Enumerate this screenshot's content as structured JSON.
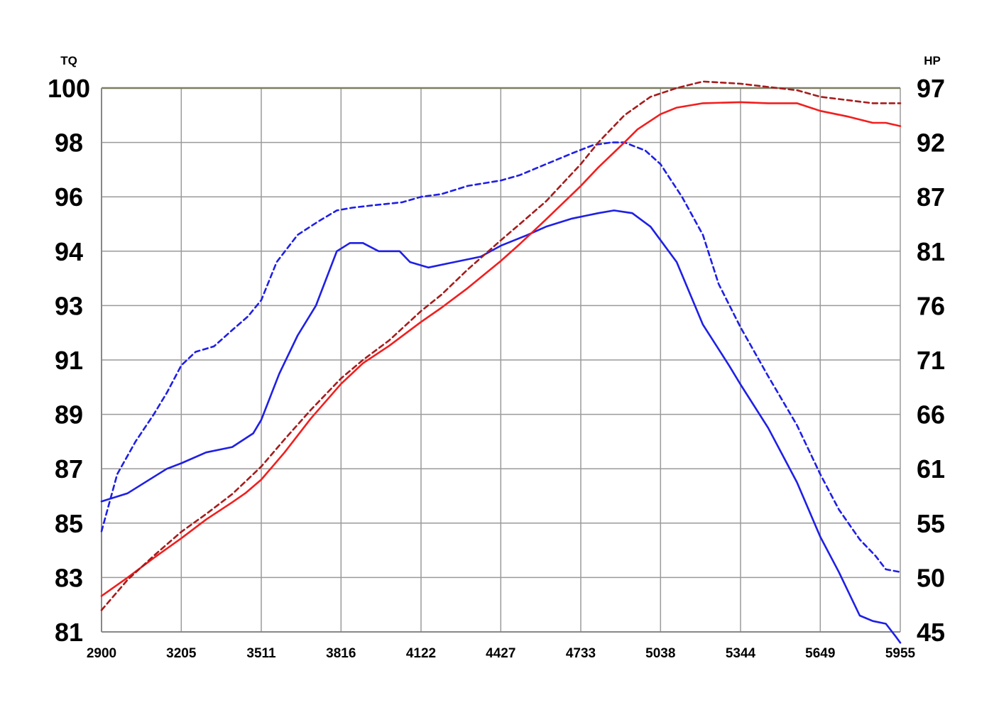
{
  "chart_data": {
    "type": "line",
    "left_axis_label": "TQ",
    "right_axis_label": "HP",
    "x_ticks": [
      "2900",
      "3205",
      "3511",
      "3816",
      "4122",
      "4427",
      "4733",
      "5038",
      "5344",
      "5649",
      "5955"
    ],
    "left_ticks": [
      "81",
      "83",
      "85",
      "87",
      "89",
      "91",
      "93",
      "94",
      "96",
      "98",
      "100"
    ],
    "right_ticks": [
      "45",
      "50",
      "55",
      "61",
      "66",
      "71",
      "76",
      "81",
      "87",
      "92",
      "97"
    ],
    "xlim": [
      2900,
      5955
    ],
    "ylim_index": [
      0,
      10
    ],
    "grid": true,
    "colors": {
      "blue": "#1f1fe6",
      "red": "#f21e1e",
      "dark_red": "#a61c1c",
      "grid": "#9a9a9a",
      "top_line": "#7d7d62"
    },
    "series": [
      {
        "color": "blue",
        "style": "solid",
        "axis": "TQ",
        "points": [
          [
            2900,
            85.8
          ],
          [
            3000,
            86.1
          ],
          [
            3100,
            86.7
          ],
          [
            3150,
            87.0
          ],
          [
            3205,
            87.2
          ],
          [
            3300,
            87.6
          ],
          [
            3400,
            87.8
          ],
          [
            3480,
            88.3
          ],
          [
            3511,
            88.8
          ],
          [
            3580,
            90.5
          ],
          [
            3650,
            91.9
          ],
          [
            3720,
            93.0
          ],
          [
            3800,
            94.0
          ],
          [
            3850,
            94.3
          ],
          [
            3900,
            94.3
          ],
          [
            3960,
            94.0
          ],
          [
            4040,
            94.0
          ],
          [
            4080,
            93.8
          ],
          [
            4150,
            93.7
          ],
          [
            4250,
            93.8
          ],
          [
            4350,
            93.9
          ],
          [
            4427,
            94.2
          ],
          [
            4530,
            94.6
          ],
          [
            4600,
            94.9
          ],
          [
            4700,
            95.2
          ],
          [
            4750,
            95.3
          ],
          [
            4800,
            95.4
          ],
          [
            4860,
            95.5
          ],
          [
            4930,
            95.4
          ],
          [
            5000,
            94.9
          ],
          [
            5100,
            93.8
          ],
          [
            5200,
            92.3
          ],
          [
            5300,
            90.8
          ],
          [
            5344,
            90.1
          ],
          [
            5450,
            88.5
          ],
          [
            5560,
            86.5
          ],
          [
            5649,
            84.5
          ],
          [
            5720,
            83.2
          ],
          [
            5800,
            81.6
          ],
          [
            5850,
            81.4
          ],
          [
            5900,
            81.3
          ],
          [
            5940,
            80.8
          ],
          [
            5955,
            80.6
          ]
        ]
      },
      {
        "color": "blue",
        "style": "dashed",
        "axis": "TQ",
        "points": [
          [
            2900,
            84.7
          ],
          [
            2960,
            86.8
          ],
          [
            3030,
            88.0
          ],
          [
            3100,
            89.0
          ],
          [
            3150,
            89.8
          ],
          [
            3205,
            90.8
          ],
          [
            3260,
            91.3
          ],
          [
            3330,
            91.5
          ],
          [
            3400,
            92.1
          ],
          [
            3460,
            92.6
          ],
          [
            3511,
            93.1
          ],
          [
            3570,
            93.8
          ],
          [
            3650,
            94.6
          ],
          [
            3730,
            95.1
          ],
          [
            3800,
            95.5
          ],
          [
            3860,
            95.6
          ],
          [
            3950,
            95.7
          ],
          [
            4050,
            95.8
          ],
          [
            4122,
            96.0
          ],
          [
            4200,
            96.1
          ],
          [
            4300,
            96.4
          ],
          [
            4427,
            96.6
          ],
          [
            4500,
            96.8
          ],
          [
            4600,
            97.2
          ],
          [
            4650,
            97.4
          ],
          [
            4700,
            97.6
          ],
          [
            4780,
            97.9
          ],
          [
            4850,
            98.0
          ],
          [
            4900,
            98.0
          ],
          [
            4980,
            97.7
          ],
          [
            5038,
            97.2
          ],
          [
            5120,
            96.0
          ],
          [
            5200,
            94.6
          ],
          [
            5260,
            93.4
          ],
          [
            5344,
            92.2
          ],
          [
            5450,
            90.4
          ],
          [
            5560,
            88.6
          ],
          [
            5649,
            86.8
          ],
          [
            5720,
            85.5
          ],
          [
            5800,
            84.4
          ],
          [
            5860,
            83.8
          ],
          [
            5900,
            83.3
          ],
          [
            5955,
            83.2
          ]
        ]
      },
      {
        "color": "red",
        "style": "solid",
        "axis": "HP",
        "points": [
          [
            2900,
            48.3
          ],
          [
            3000,
            50.0
          ],
          [
            3100,
            51.8
          ],
          [
            3205,
            53.6
          ],
          [
            3300,
            55.4
          ],
          [
            3400,
            57.3
          ],
          [
            3450,
            58.3
          ],
          [
            3511,
            59.8
          ],
          [
            3600,
            62.5
          ],
          [
            3700,
            65.6
          ],
          [
            3816,
            68.8
          ],
          [
            3900,
            70.7
          ],
          [
            4000,
            72.3
          ],
          [
            4122,
            74.5
          ],
          [
            4200,
            75.8
          ],
          [
            4300,
            77.6
          ],
          [
            4427,
            80.1
          ],
          [
            4500,
            81.8
          ],
          [
            4600,
            84.5
          ],
          [
            4733,
            88.0
          ],
          [
            4800,
            89.7
          ],
          [
            4900,
            92.0
          ],
          [
            4950,
            93.2
          ],
          [
            5038,
            94.6
          ],
          [
            5100,
            95.2
          ],
          [
            5200,
            95.6
          ],
          [
            5344,
            95.7
          ],
          [
            5450,
            95.6
          ],
          [
            5560,
            95.6
          ],
          [
            5649,
            94.9
          ],
          [
            5750,
            94.4
          ],
          [
            5850,
            93.8
          ],
          [
            5900,
            93.8
          ],
          [
            5955,
            93.5
          ]
        ]
      },
      {
        "color": "dark_red",
        "style": "dashed",
        "axis": "HP",
        "points": [
          [
            2900,
            47.0
          ],
          [
            3000,
            49.8
          ],
          [
            3100,
            52.0
          ],
          [
            3205,
            54.2
          ],
          [
            3300,
            56.0
          ],
          [
            3400,
            58.2
          ],
          [
            3511,
            61.2
          ],
          [
            3600,
            63.7
          ],
          [
            3700,
            66.4
          ],
          [
            3816,
            69.3
          ],
          [
            3900,
            71.0
          ],
          [
            4000,
            72.8
          ],
          [
            4122,
            75.5
          ],
          [
            4200,
            77.0
          ],
          [
            4300,
            79.3
          ],
          [
            4427,
            82.2
          ],
          [
            4500,
            84.0
          ],
          [
            4600,
            86.5
          ],
          [
            4733,
            90.0
          ],
          [
            4800,
            92.0
          ],
          [
            4900,
            94.5
          ],
          [
            5000,
            96.2
          ],
          [
            5100,
            97.0
          ],
          [
            5200,
            97.6
          ],
          [
            5344,
            97.4
          ],
          [
            5450,
            97.1
          ],
          [
            5560,
            96.8
          ],
          [
            5649,
            96.2
          ],
          [
            5750,
            95.9
          ],
          [
            5850,
            95.6
          ],
          [
            5955,
            95.6
          ]
        ]
      }
    ]
  }
}
